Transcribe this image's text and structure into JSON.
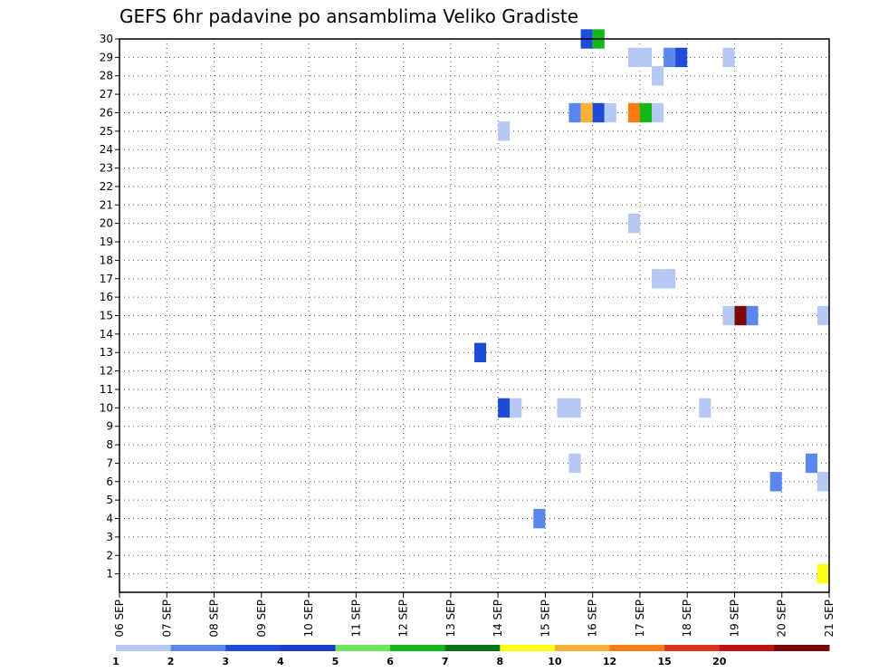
{
  "chart_data": {
    "type": "heatmap",
    "title": "GEFS 6hr padavine po ansamblima Veliko Gradiste",
    "xlabel": "",
    "ylabel": "",
    "x_ticks": [
      "06 SEP",
      "07 SEP",
      "08 SEP",
      "09 SEP",
      "10 SEP",
      "11 SEP",
      "12 SEP",
      "13 SEP",
      "14 SEP",
      "15 SEP",
      "16 SEP",
      "17 SEP",
      "18 SEP",
      "19 SEP",
      "20 SEP",
      "21 SEP"
    ],
    "y_ticks": [
      1,
      2,
      3,
      4,
      5,
      6,
      7,
      8,
      9,
      10,
      11,
      12,
      13,
      14,
      15,
      16,
      17,
      18,
      19,
      20,
      21,
      22,
      23,
      24,
      25,
      26,
      27,
      28,
      29,
      30
    ],
    "xlim": [
      0,
      60
    ],
    "ylim": [
      0,
      30
    ],
    "grid": true,
    "colorbar": {
      "labels": [
        "1",
        "2",
        "3",
        "4",
        "5",
        "6",
        "7",
        "8",
        "10",
        "12",
        "15",
        "20"
      ],
      "colors": [
        "#b6c8f4",
        "#5b86ee",
        "#1f4bd6",
        "#1e3ec8",
        "#6ee85a",
        "#12b81a",
        "#0a7312",
        "#ffff14",
        "#fbb03a",
        "#f97c14",
        "#e0331d",
        "#c01414",
        "#7a0a0a"
      ]
    },
    "cells": [
      {
        "t": 39.5,
        "member": 30,
        "level": 3
      },
      {
        "t": 40.5,
        "member": 30,
        "level": 6
      },
      {
        "t": 43.5,
        "member": 29,
        "level": 1
      },
      {
        "t": 44.5,
        "member": 29,
        "level": 1
      },
      {
        "t": 46.5,
        "member": 29,
        "level": 2
      },
      {
        "t": 47.5,
        "member": 29,
        "level": 3
      },
      {
        "t": 51.5,
        "member": 29,
        "level": 1
      },
      {
        "t": 45.5,
        "member": 28,
        "level": 1
      },
      {
        "t": 38.5,
        "member": 26,
        "level": 2
      },
      {
        "t": 39.5,
        "member": 26,
        "level": 9
      },
      {
        "t": 40.5,
        "member": 26,
        "level": 3
      },
      {
        "t": 41.5,
        "member": 26,
        "level": 1
      },
      {
        "t": 43.5,
        "member": 26,
        "level": 10
      },
      {
        "t": 44.5,
        "member": 26,
        "level": 6
      },
      {
        "t": 45.5,
        "member": 26,
        "level": 1
      },
      {
        "t": 32.5,
        "member": 25,
        "level": 1
      },
      {
        "t": 43.5,
        "member": 20,
        "level": 1
      },
      {
        "t": 45.5,
        "member": 17,
        "level": 1
      },
      {
        "t": 46.5,
        "member": 17,
        "level": 1
      },
      {
        "t": 51.5,
        "member": 15,
        "level": 1
      },
      {
        "t": 52.5,
        "member": 15,
        "level": 13
      },
      {
        "t": 53.5,
        "member": 15,
        "level": 2
      },
      {
        "t": 59.5,
        "member": 15,
        "level": 1
      },
      {
        "t": 30.5,
        "member": 13,
        "level": 3
      },
      {
        "t": 32.5,
        "member": 10,
        "level": 3
      },
      {
        "t": 33.5,
        "member": 10,
        "level": 1
      },
      {
        "t": 37.5,
        "member": 10,
        "level": 1
      },
      {
        "t": 38.5,
        "member": 10,
        "level": 1
      },
      {
        "t": 49.5,
        "member": 10,
        "level": 1
      },
      {
        "t": 38.5,
        "member": 7,
        "level": 1
      },
      {
        "t": 58.5,
        "member": 7,
        "level": 2
      },
      {
        "t": 55.5,
        "member": 6,
        "level": 2
      },
      {
        "t": 59.5,
        "member": 6,
        "level": 1
      },
      {
        "t": 35.5,
        "member": 4,
        "level": 2
      },
      {
        "t": 59.5,
        "member": 1,
        "level": 8
      }
    ]
  }
}
